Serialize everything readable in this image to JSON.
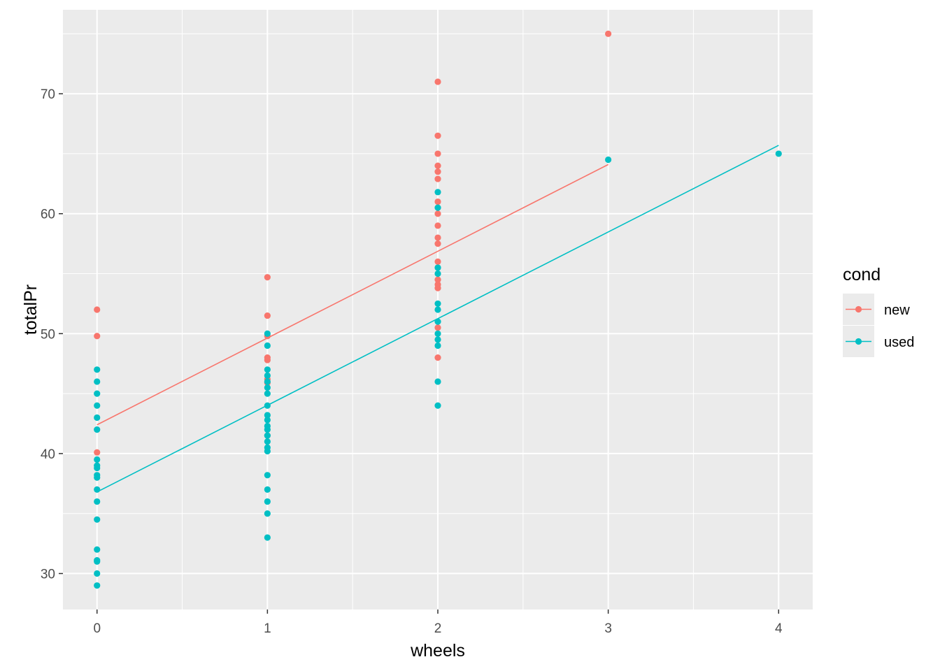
{
  "chart_data": {
    "type": "scatter",
    "xlabel": "wheels",
    "ylabel": "totalPr",
    "xlim": [
      -0.2,
      4.2
    ],
    "ylim": [
      27,
      77
    ],
    "x_ticks": [
      0,
      1,
      2,
      3,
      4
    ],
    "y_ticks": [
      30,
      40,
      50,
      60,
      70
    ],
    "grid": true,
    "legend": {
      "title": "cond",
      "placement": "right"
    },
    "series": [
      {
        "name": "new",
        "color": "#F8766D",
        "points": [
          [
            0,
            52
          ],
          [
            0,
            49.8
          ],
          [
            0,
            40.1
          ],
          [
            1,
            54.7
          ],
          [
            1,
            51.5
          ],
          [
            1,
            49.8
          ],
          [
            1,
            48
          ],
          [
            1,
            47.8
          ],
          [
            1,
            46.2
          ],
          [
            1,
            45.9
          ],
          [
            1,
            41.5
          ],
          [
            2,
            71
          ],
          [
            2,
            66.5
          ],
          [
            2,
            65
          ],
          [
            2,
            64
          ],
          [
            2,
            63.5
          ],
          [
            2,
            62.9
          ],
          [
            2,
            61
          ],
          [
            2,
            60
          ],
          [
            2,
            59
          ],
          [
            2,
            58
          ],
          [
            2,
            57.5
          ],
          [
            2,
            56
          ],
          [
            2,
            54.5
          ],
          [
            2,
            54.1
          ],
          [
            2,
            53.8
          ],
          [
            2,
            50.5
          ],
          [
            2,
            48
          ],
          [
            3,
            75
          ]
        ],
        "fit": {
          "x": [
            0,
            3
          ],
          "y": [
            42.4,
            64.1
          ]
        }
      },
      {
        "name": "used",
        "color": "#00BFC4",
        "points": [
          [
            0,
            47
          ],
          [
            0,
            46
          ],
          [
            0,
            45
          ],
          [
            0,
            44
          ],
          [
            0,
            43
          ],
          [
            0,
            42
          ],
          [
            0,
            39.5
          ],
          [
            0,
            39
          ],
          [
            0,
            38.8
          ],
          [
            0,
            38.2
          ],
          [
            0,
            38
          ],
          [
            0,
            37
          ],
          [
            0,
            36
          ],
          [
            0,
            34.5
          ],
          [
            0,
            32
          ],
          [
            0,
            31.1
          ],
          [
            0,
            31
          ],
          [
            0,
            30
          ],
          [
            0,
            29
          ],
          [
            1,
            50
          ],
          [
            1,
            49
          ],
          [
            1,
            47
          ],
          [
            1,
            46.5
          ],
          [
            1,
            46
          ],
          [
            1,
            45.5
          ],
          [
            1,
            45
          ],
          [
            1,
            44
          ],
          [
            1,
            43.2
          ],
          [
            1,
            42.8
          ],
          [
            1,
            42.3
          ],
          [
            1,
            42
          ],
          [
            1,
            41.5
          ],
          [
            1,
            41
          ],
          [
            1,
            40.5
          ],
          [
            1,
            40.2
          ],
          [
            1,
            38.2
          ],
          [
            1,
            37
          ],
          [
            1,
            36
          ],
          [
            1,
            35
          ],
          [
            1,
            33
          ],
          [
            2,
            61.8
          ],
          [
            2,
            60.5
          ],
          [
            2,
            55.5
          ],
          [
            2,
            55
          ],
          [
            2,
            52.5
          ],
          [
            2,
            52
          ],
          [
            2,
            51
          ],
          [
            2,
            50
          ],
          [
            2,
            49.5
          ],
          [
            2,
            49
          ],
          [
            2,
            46
          ],
          [
            2,
            44
          ],
          [
            3,
            64.5
          ],
          [
            4,
            65
          ]
        ],
        "fit": {
          "x": [
            0,
            4
          ],
          "y": [
            36.8,
            65.7
          ]
        }
      }
    ]
  }
}
